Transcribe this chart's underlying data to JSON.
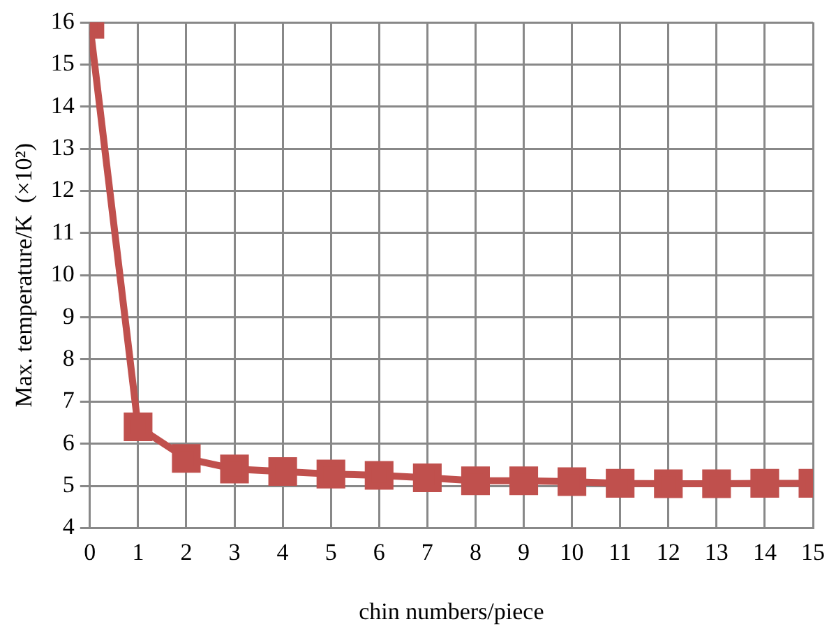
{
  "chart_data": {
    "type": "line",
    "xlabel": "chin numbers/piece",
    "ylabel": "Max. temperature/K  (×10²)",
    "x": [
      0,
      1,
      2,
      3,
      4,
      5,
      6,
      7,
      8,
      9,
      10,
      11,
      12,
      13,
      14,
      15
    ],
    "series": [
      {
        "color": "#c0504d",
        "values": [
          15.95,
          6.4,
          5.65,
          5.4,
          5.34,
          5.28,
          5.25,
          5.19,
          5.12,
          5.12,
          5.1,
          5.06,
          5.05,
          5.05,
          5.06,
          5.06
        ]
      }
    ],
    "xlim": [
      0,
      15
    ],
    "xticks": [
      0,
      1,
      2,
      3,
      4,
      5,
      6,
      7,
      8,
      9,
      10,
      11,
      12,
      13,
      14,
      15
    ],
    "ylim": [
      4,
      16
    ],
    "yticks": [
      4,
      5,
      6,
      7,
      8,
      9,
      10,
      11,
      12,
      13,
      14,
      15,
      16
    ],
    "grid": true,
    "marker": "square",
    "line_style": "solid",
    "legend": false
  }
}
